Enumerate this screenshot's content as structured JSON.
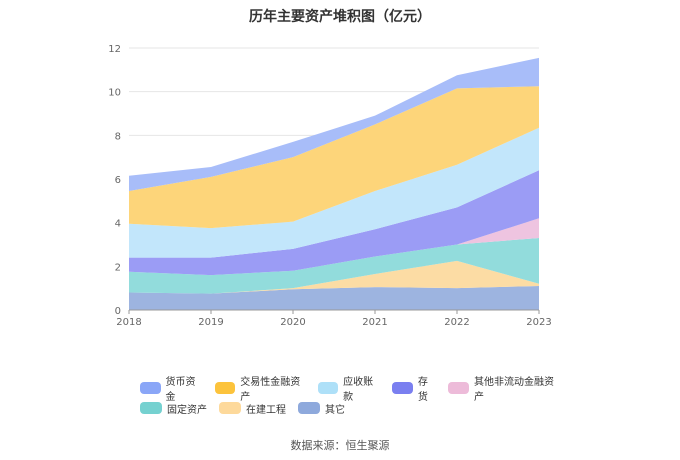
{
  "chart_data": {
    "type": "area",
    "stacked": true,
    "title": "历年主要资产堆积图（亿元）",
    "categories": [
      "2018",
      "2019",
      "2020",
      "2021",
      "2022",
      "2023"
    ],
    "ylim": [
      0,
      12
    ],
    "yticks": [
      0,
      2,
      4,
      6,
      8,
      10,
      12
    ],
    "grid": true,
    "legend_position": "bottom",
    "series": [
      {
        "name": "其它",
        "color": "#9db4e0",
        "values": [
          0.8,
          0.75,
          0.95,
          1.05,
          1.0,
          1.1
        ]
      },
      {
        "name": "在建工程",
        "color": "#fcdca4",
        "values": [
          0.0,
          0.0,
          0.05,
          0.6,
          1.25,
          0.1
        ]
      },
      {
        "name": "固定资产",
        "color": "#92dcdc",
        "values": [
          0.95,
          0.85,
          0.8,
          0.8,
          0.75,
          2.1
        ]
      },
      {
        "name": "其他非流动金融资产",
        "color": "#eec4e0",
        "values": [
          0.0,
          0.0,
          0.0,
          0.0,
          0.0,
          0.9
        ]
      },
      {
        "name": "存货",
        "color": "#9b9cf5",
        "values": [
          0.65,
          0.8,
          1.0,
          1.25,
          1.7,
          2.2
        ]
      },
      {
        "name": "应收账款",
        "color": "#c2e6fb",
        "values": [
          1.55,
          1.35,
          1.25,
          1.75,
          1.95,
          1.95
        ]
      },
      {
        "name": "交易性金融资产",
        "color": "#fdd57a",
        "values": [
          1.5,
          2.35,
          2.95,
          3.05,
          3.5,
          1.9
        ]
      },
      {
        "name": "货币资金",
        "color": "#a8bdf9",
        "values": [
          0.7,
          0.45,
          0.7,
          0.4,
          0.6,
          1.3
        ]
      }
    ],
    "legend": [
      {
        "name": "货币资金",
        "color": "#8aa6f7"
      },
      {
        "name": "交易性金融资产",
        "color": "#fcc33c"
      },
      {
        "name": "应收账款",
        "color": "#aee0f8"
      },
      {
        "name": "存货",
        "color": "#7a7ff0"
      },
      {
        "name": "其他非流动金融资产",
        "color": "#edbbd9"
      },
      {
        "name": "固定资产",
        "color": "#75d1d0"
      },
      {
        "name": "在建工程",
        "color": "#fdd99b"
      },
      {
        "name": "其它",
        "color": "#8ea9dc"
      }
    ]
  },
  "source_text": "数据来源：恒生聚源"
}
